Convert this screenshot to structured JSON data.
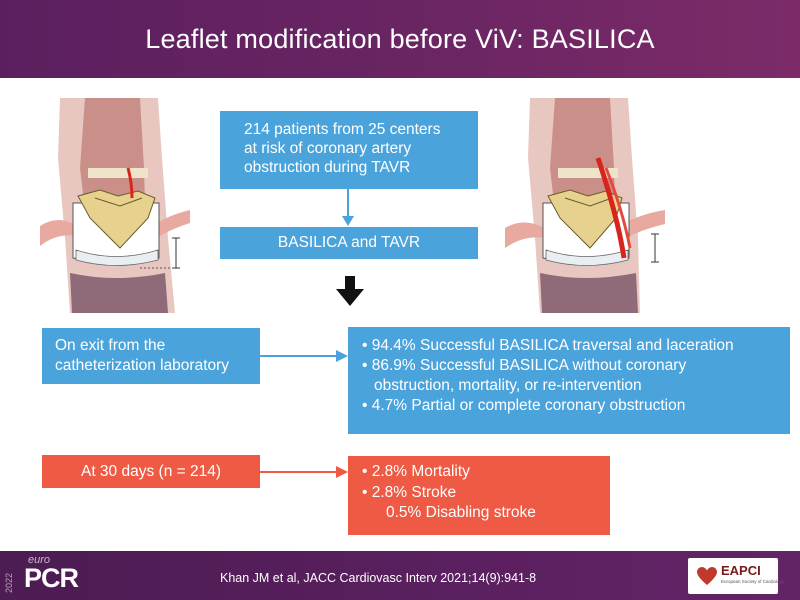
{
  "header": {
    "title": "Leaflet modification before ViV: BASILICA"
  },
  "flow": {
    "patients": [
      "214 patients from 25 centers",
      "at risk of coronary artery",
      "obstruction during TAVR"
    ],
    "procedure": "BASILICA and TAVR",
    "exit_label": [
      "On exit from the",
      "catheterization laboratory"
    ],
    "exit_results": [
      "• 94.4% Successful BASILICA traversal and laceration",
      "• 86.9% Successful BASILICA without coronary",
      "obstruction, mortality, or re-intervention",
      "• 4.7% Partial or complete coronary obstruction"
    ],
    "day30_label": "At 30 days (n = 214)",
    "day30_results": [
      "• 2.8% Mortality",
      "• 2.8% Stroke",
      "0.5% Disabling stroke"
    ]
  },
  "footer": {
    "citation": "Khan JM et al, JACC Cardiovasc Interv 2021;14(9):941-8",
    "brand_euro": "euro",
    "brand_pcr": "PCR",
    "brand_year": "2022",
    "eapci_name": "EAPCI",
    "eapci_sub": "European Society of Cardiology"
  },
  "colors": {
    "header": "#5b1f5f",
    "blue_box": "#4ba3dc",
    "red_box": "#ee5a44",
    "footer": "#4c1c52"
  }
}
